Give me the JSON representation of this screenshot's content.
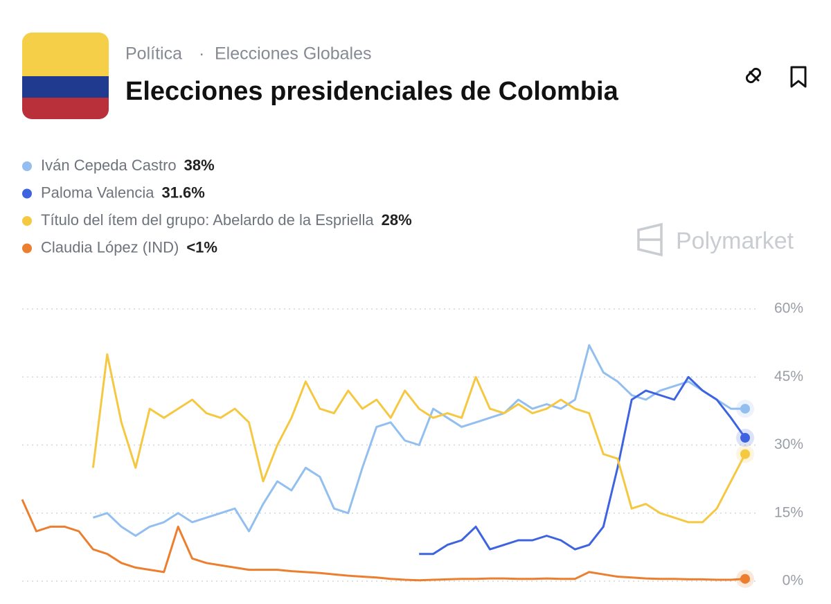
{
  "header": {
    "breadcrumb": [
      "Política",
      "Elecciones Globales"
    ],
    "title": "Elecciones presidenciales de Colombia"
  },
  "watermark": "Polymarket",
  "chart_data": {
    "type": "line",
    "ylim": [
      0,
      60
    ],
    "yticks": [
      {
        "value": 0,
        "label": "0%"
      },
      {
        "value": 15,
        "label": "15%"
      },
      {
        "value": 30,
        "label": "30%"
      },
      {
        "value": 45,
        "label": "45%"
      },
      {
        "value": 60,
        "label": "60%"
      }
    ],
    "grid": true,
    "series": [
      {
        "name": "Iván Cepeda Castro",
        "color": "#93bff0",
        "current": {
          "value": 38,
          "label": "38%"
        },
        "values": [
          null,
          null,
          null,
          null,
          null,
          14,
          15,
          12,
          10,
          12,
          13,
          15,
          13,
          14,
          15,
          16,
          11,
          17,
          22,
          20,
          25,
          23,
          16,
          15,
          25,
          34,
          35,
          31,
          30,
          38,
          36,
          34,
          35,
          36,
          37,
          40,
          38,
          39,
          38,
          40,
          52,
          46,
          44,
          41,
          40,
          42,
          43,
          44,
          42,
          40,
          38,
          38
        ]
      },
      {
        "name": "Paloma Valencia",
        "color": "#3d63e0",
        "current": {
          "value": 31.6,
          "label": "31.6%"
        },
        "values": [
          null,
          null,
          null,
          null,
          null,
          null,
          null,
          null,
          null,
          null,
          null,
          null,
          null,
          null,
          null,
          null,
          null,
          null,
          null,
          null,
          null,
          null,
          null,
          null,
          null,
          null,
          null,
          null,
          6,
          6,
          8,
          9,
          12,
          7,
          8,
          9,
          9,
          10,
          9,
          7,
          8,
          12,
          25,
          40,
          42,
          41,
          40,
          45,
          42,
          40,
          36,
          31.6
        ]
      },
      {
        "name": "Título del ítem del grupo: Abelardo de la Espriella",
        "color": "#f5c842",
        "current": {
          "value": 28,
          "label": "28%"
        },
        "values": [
          null,
          null,
          null,
          null,
          null,
          25,
          50,
          35,
          25,
          38,
          36,
          38,
          40,
          37,
          36,
          38,
          35,
          22,
          30,
          36,
          44,
          38,
          37,
          42,
          38,
          40,
          36,
          42,
          38,
          36,
          37,
          36,
          45,
          38,
          37,
          39,
          37,
          38,
          40,
          38,
          37,
          28,
          27,
          16,
          17,
          15,
          14,
          13,
          13,
          16,
          22,
          28
        ]
      },
      {
        "name": "Claudia López (IND)",
        "color": "#ec7f2f",
        "current": {
          "value": 0.5,
          "label": "<1%"
        },
        "values": [
          18,
          11,
          12,
          12,
          11,
          7,
          6,
          4,
          3,
          2.5,
          2,
          12,
          5,
          4,
          3.5,
          3,
          2.5,
          2.5,
          2.5,
          2.2,
          2,
          1.8,
          1.5,
          1.2,
          1,
          0.8,
          0.5,
          0.3,
          0.2,
          0.3,
          0.4,
          0.5,
          0.5,
          0.6,
          0.6,
          0.5,
          0.5,
          0.6,
          0.5,
          0.5,
          2,
          1.5,
          1,
          0.8,
          0.6,
          0.5,
          0.5,
          0.4,
          0.4,
          0.3,
          0.3,
          0.5
        ]
      }
    ]
  }
}
